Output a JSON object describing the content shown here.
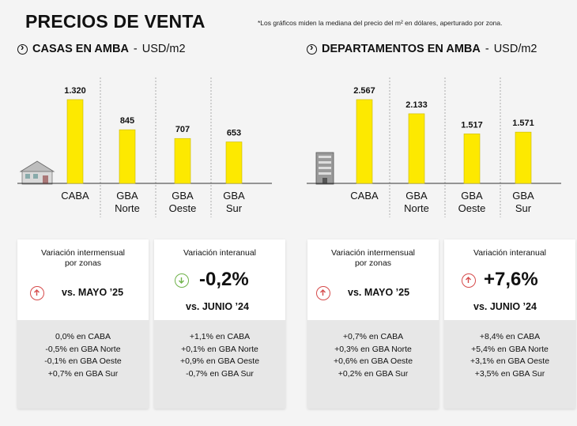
{
  "title": "PRECIOS DE VENTA",
  "note": "*Los gráficos miden la mediana del precio del m² en dólares, aperturado por zona.",
  "chart_data": [
    {
      "type": "bar",
      "title": "CASAS EN AMBA",
      "unit": "USD/m2",
      "categories": [
        "CABA",
        "GBA Norte",
        "GBA Oeste",
        "GBA Sur"
      ],
      "value_labels": [
        "1.320",
        "845",
        "707",
        "653"
      ],
      "values": [
        1320,
        845,
        707,
        653
      ],
      "ylim": [
        0,
        1400
      ]
    },
    {
      "type": "bar",
      "title": "DEPARTAMENTOS EN AMBA",
      "unit": "USD/m2",
      "categories": [
        "CABA",
        "GBA Norte",
        "GBA Oeste",
        "GBA Sur"
      ],
      "value_labels": [
        "2.567",
        "2.133",
        "1.517",
        "1.571"
      ],
      "values": [
        2567,
        2133,
        1517,
        1571
      ],
      "ylim": [
        0,
        2750
      ]
    }
  ],
  "colors": {
    "bar": "#fde900",
    "up": "#d64b4b",
    "down": "#6fb24a"
  },
  "cards": {
    "casas_mensual": {
      "label1": "Variación intermensual",
      "label2": "por zonas",
      "icon": "arrow-up-circle-icon",
      "compare": "vs. MAYO ’25",
      "lines": [
        "0,0% en CABA",
        "-0,5% en GBA Norte",
        "-0,1% en GBA Oeste",
        "+0,7% en GBA Sur"
      ]
    },
    "casas_anual": {
      "label1": "Variación interanual",
      "icon": "arrow-down-circle-icon",
      "value": "-0,2%",
      "compare": "vs. JUNIO ’24",
      "lines": [
        "+1,1% en CABA",
        "+0,1% en GBA Norte",
        "+0,9% en GBA Oeste",
        "-0,7% en GBA Sur"
      ]
    },
    "deptos_mensual": {
      "label1": "Variación intermensual",
      "label2": "por zonas",
      "icon": "arrow-up-circle-icon",
      "compare": "vs. MAYO ’25",
      "lines": [
        "+0,7% en CABA",
        "+0,3% en GBA Norte",
        "+0,6% en GBA Oeste",
        "+0,2% en GBA Sur"
      ]
    },
    "deptos_anual": {
      "label1": "Variación interanual",
      "icon": "arrow-up-circle-icon",
      "value": "+7,6%",
      "compare": "vs. JUNIO ’24",
      "lines": [
        "+8,4% en CABA",
        "+5,4% en GBA Norte",
        "+3,1% en GBA Oeste",
        "+3,5% en GBA Sur"
      ]
    }
  }
}
